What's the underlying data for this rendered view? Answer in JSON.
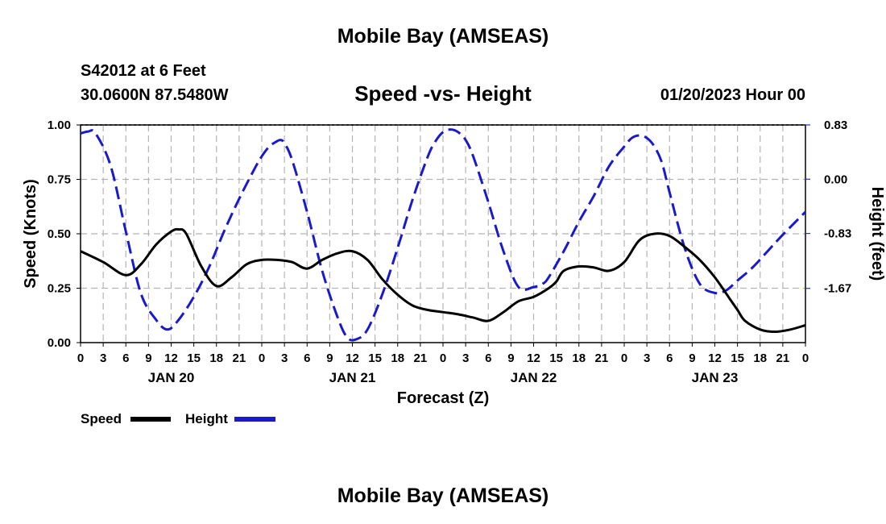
{
  "header": {
    "title": "Mobile Bay (AMSEAS)",
    "station": "S42012 at 6 Feet",
    "coordinates": "30.0600N  87.5480W",
    "date": "01/20/2023 Hour 00"
  },
  "footer": {
    "title": "Mobile Bay (AMSEAS)"
  },
  "chart_data": {
    "type": "line",
    "title": "Speed -vs- Height",
    "xlabel": "Forecast (Z)",
    "ylabel": "Speed (Knots)",
    "y2label": "Height (feet)",
    "x_range_hours": [
      0,
      96
    ],
    "ylim": [
      0,
      1
    ],
    "y2lim": [
      -2.5,
      0.83
    ],
    "x_tick_labels": [
      "0",
      "3",
      "6",
      "9",
      "12",
      "15",
      "18",
      "21",
      "0",
      "3",
      "6",
      "9",
      "12",
      "15",
      "18",
      "21",
      "0",
      "3",
      "6",
      "9",
      "12",
      "15",
      "18",
      "21",
      "0",
      "3",
      "6",
      "9",
      "12",
      "15",
      "18",
      "21",
      "0"
    ],
    "day_labels": [
      "JAN 20",
      "JAN 21",
      "JAN 22",
      "JAN 23"
    ],
    "y_tick_labels": [
      "0.00",
      "0.25",
      "0.50",
      "0.75",
      "1.00"
    ],
    "y2_tick_labels": [
      "-1.67",
      "-0.83",
      "0.00",
      "0.83"
    ],
    "legend": [
      "Speed",
      "Height"
    ],
    "colors": {
      "speed": "#000000",
      "height": "#1a1acc",
      "grid": "#b4b4b4"
    },
    "series": [
      {
        "name": "Speed",
        "units": "knots",
        "x": [
          0,
          3,
          6,
          8,
          10,
          12,
          13,
          14,
          16,
          18,
          20,
          22,
          24,
          26,
          28,
          30,
          32,
          34,
          36,
          38,
          40,
          42,
          44,
          46,
          48,
          50,
          52,
          54,
          56,
          58,
          60,
          62,
          63,
          64,
          66,
          68,
          70,
          72,
          74,
          76,
          78,
          80,
          82,
          84,
          86,
          87,
          88,
          90,
          92,
          94,
          96
        ],
        "values": [
          0.42,
          0.37,
          0.31,
          0.36,
          0.45,
          0.51,
          0.52,
          0.5,
          0.35,
          0.26,
          0.3,
          0.36,
          0.38,
          0.38,
          0.37,
          0.34,
          0.38,
          0.41,
          0.42,
          0.38,
          0.29,
          0.22,
          0.17,
          0.15,
          0.14,
          0.13,
          0.115,
          0.1,
          0.14,
          0.19,
          0.21,
          0.25,
          0.28,
          0.33,
          0.35,
          0.345,
          0.33,
          0.37,
          0.47,
          0.5,
          0.49,
          0.44,
          0.38,
          0.3,
          0.2,
          0.15,
          0.1,
          0.06,
          0.05,
          0.06,
          0.08
        ]
      },
      {
        "name": "Height",
        "units": "feet",
        "x": [
          0,
          1,
          2,
          4,
          6,
          8,
          10,
          11.5,
          13,
          15,
          17,
          19,
          21,
          23,
          24,
          25,
          26,
          26.5,
          27,
          28,
          30,
          32,
          34,
          35.3,
          36.5,
          38,
          40,
          42,
          44,
          46,
          47,
          48,
          49,
          50,
          51,
          52,
          54,
          56,
          58,
          60,
          61.2,
          62,
          64,
          66,
          68,
          70,
          72,
          73,
          74,
          75,
          76,
          77,
          78,
          80,
          82,
          84,
          85.5,
          87,
          89,
          91,
          93,
          96
        ],
        "values": [
          0.7,
          0.73,
          0.7,
          0.2,
          -0.8,
          -1.75,
          -2.15,
          -2.3,
          -2.15,
          -1.8,
          -1.35,
          -0.8,
          -0.3,
          0.15,
          0.35,
          0.5,
          0.58,
          0.6,
          0.55,
          0.3,
          -0.5,
          -1.4,
          -2.1,
          -2.42,
          -2.45,
          -2.3,
          -1.75,
          -1.05,
          -0.3,
          0.35,
          0.58,
          0.72,
          0.76,
          0.72,
          0.6,
          0.35,
          -0.35,
          -1.1,
          -1.65,
          -1.65,
          -1.6,
          -1.5,
          -1.1,
          -0.65,
          -0.25,
          0.2,
          0.5,
          0.63,
          0.67,
          0.63,
          0.5,
          0.25,
          -0.2,
          -1.05,
          -1.6,
          -1.74,
          -1.7,
          -1.55,
          -1.35,
          -1.1,
          -0.85,
          -0.5
        ]
      }
    ]
  }
}
